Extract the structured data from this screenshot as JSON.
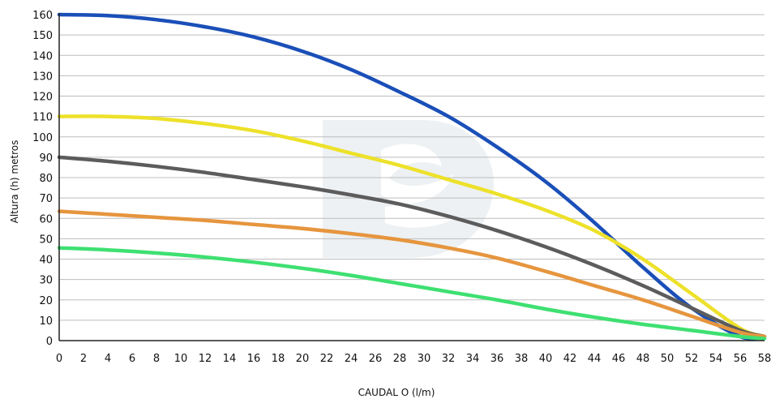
{
  "chart_data": {
    "type": "line",
    "title": "",
    "xlabel": "CAUDAL O (l/m)",
    "ylabel": "Altura (h) metros",
    "xlim": [
      0,
      58
    ],
    "ylim": [
      0,
      160
    ],
    "y_ticks": [
      0,
      10,
      20,
      30,
      40,
      50,
      60,
      70,
      80,
      90,
      100,
      110,
      120,
      130,
      140,
      150,
      160
    ],
    "x_ticks": [
      0,
      2,
      4,
      6,
      8,
      10,
      12,
      14,
      16,
      18,
      20,
      22,
      24,
      26,
      28,
      30,
      32,
      34,
      36,
      38,
      40,
      42,
      44,
      46,
      48,
      50,
      52,
      54,
      56,
      58
    ],
    "grid": "horizontal",
    "legend": "none",
    "series": [
      {
        "color": "#1a4fb8",
        "x": [
          0,
          4,
          8,
          12,
          16,
          20,
          24,
          28,
          32,
          36,
          40,
          44,
          48,
          52,
          56,
          58
        ],
        "y": [
          160,
          159.5,
          157.5,
          154,
          149,
          142,
          133,
          122,
          110,
          95,
          78,
          58,
          36,
          16,
          2,
          2
        ]
      },
      {
        "color": "#ede12a",
        "x": [
          0,
          4,
          8,
          12,
          16,
          20,
          24,
          28,
          32,
          36,
          40,
          44,
          48,
          52,
          56,
          58
        ],
        "y": [
          110,
          110,
          109,
          106.5,
          103,
          98,
          92,
          86,
          79,
          72,
          64,
          54,
          40,
          23,
          6,
          2
        ]
      },
      {
        "color": "#5c5c5c",
        "x": [
          0,
          4,
          8,
          12,
          16,
          20,
          24,
          28,
          32,
          36,
          40,
          44,
          48,
          52,
          56,
          58
        ],
        "y": [
          90,
          88,
          85.5,
          82.5,
          79,
          75.5,
          71.5,
          67,
          61,
          54,
          46,
          37,
          27,
          16,
          5,
          2
        ]
      },
      {
        "color": "#e6953e",
        "x": [
          0,
          4,
          8,
          12,
          16,
          20,
          24,
          28,
          32,
          36,
          40,
          44,
          48,
          52,
          56,
          58
        ],
        "y": [
          63.5,
          62,
          60.5,
          59,
          57,
          55,
          52.5,
          49.5,
          45.5,
          40.5,
          34,
          27,
          20,
          12,
          4,
          2
        ]
      },
      {
        "color": "#3ee071",
        "x": [
          0,
          4,
          8,
          12,
          16,
          20,
          24,
          28,
          32,
          36,
          40,
          44,
          48,
          52,
          56,
          58
        ],
        "y": [
          45.5,
          44.5,
          43,
          41,
          38.5,
          35.5,
          32,
          28,
          24,
          20,
          15.5,
          11.5,
          8,
          5,
          2,
          1
        ]
      }
    ]
  },
  "colors": {
    "grid": "#bdbdbd",
    "axis": "#222222",
    "watermark": "#dfe6ea"
  }
}
